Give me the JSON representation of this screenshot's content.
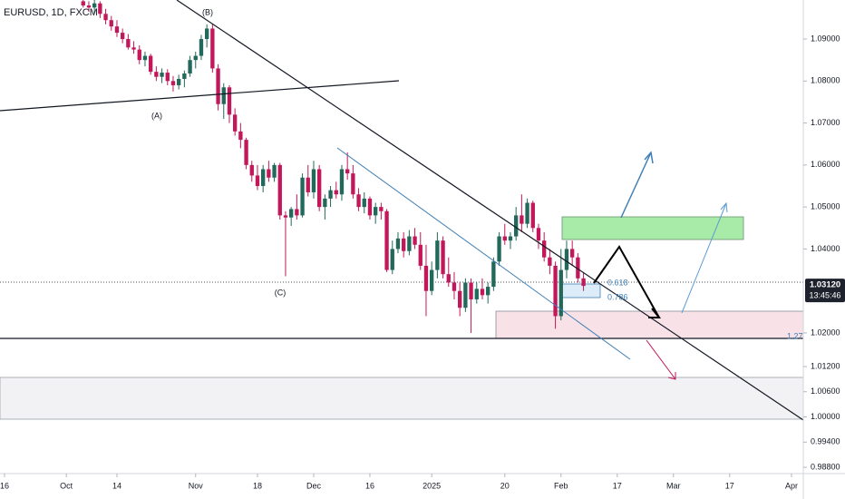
{
  "chart_data": {
    "type": "candlestick",
    "title": "EURUSD, 1D, FXCM",
    "x": [
      14,
      15,
      16,
      17,
      18,
      19,
      20,
      21,
      22,
      23,
      24,
      25,
      26,
      27,
      28,
      29,
      30,
      31,
      32,
      33,
      34,
      35,
      36,
      37,
      38,
      39,
      40,
      41,
      42,
      43,
      44,
      45,
      46,
      47,
      48,
      49,
      50,
      51,
      52,
      53,
      54,
      55,
      56,
      57,
      58,
      59,
      60,
      61,
      62,
      63,
      64,
      65,
      66,
      67,
      68,
      69,
      70,
      71,
      72,
      73,
      74,
      75,
      76,
      77,
      78,
      79,
      80,
      81,
      82,
      83,
      84,
      85,
      86,
      87,
      88,
      89,
      90,
      91,
      92,
      93,
      94,
      95,
      96,
      97,
      98,
      99,
      100,
      101,
      102,
      103
    ],
    "open": [
      1.099,
      1.098,
      1.0975,
      1.0985,
      1.096,
      1.0945,
      1.093,
      1.0915,
      1.09,
      1.088,
      1.0875,
      1.085,
      1.086,
      1.0822,
      1.081,
      1.082,
      1.08,
      1.079,
      1.0805,
      1.0818,
      1.085,
      1.086,
      1.09,
      1.0925,
      1.083,
      1.0745,
      1.0785,
      1.072,
      1.068,
      1.066,
      1.06,
      1.0575,
      1.055,
      1.059,
      1.057,
      1.06,
      1.048,
      1.0475,
      1.0495,
      1.048,
      1.057,
      1.0535,
      1.059,
      1.05,
      1.052,
      1.054,
      1.053,
      1.059,
      1.058,
      1.053,
      1.05,
      1.052,
      1.048,
      1.05,
      1.049,
      1.035,
      1.04,
      1.0425,
      1.0395,
      1.043,
      1.041,
      1.036,
      1.03,
      1.035,
      1.042,
      1.034,
      1.032,
      1.03,
      1.026,
      1.032,
      1.028,
      1.0305,
      1.029,
      1.031,
      1.037,
      1.043,
      1.042,
      1.043,
      1.048,
      1.046,
      1.051,
      1.045,
      1.042,
      1.038,
      1.036,
      1.024,
      1.035,
      1.04,
      1.038,
      1.033
    ],
    "high": [
      1.1,
      1.099,
      1.0995,
      1.099,
      1.0972,
      1.0955,
      1.0945,
      1.0925,
      1.0912,
      1.0895,
      1.0885,
      1.087,
      1.0865,
      1.0835,
      1.083,
      1.0828,
      1.0812,
      1.0815,
      1.0825,
      1.086,
      1.087,
      1.091,
      1.0935,
      1.0935,
      1.084,
      1.0795,
      1.079,
      1.0735,
      1.07,
      1.0665,
      1.061,
      1.06,
      1.06,
      1.061,
      1.0605,
      1.0605,
      1.049,
      1.05,
      1.053,
      1.058,
      1.06,
      1.061,
      1.06,
      1.053,
      1.055,
      1.056,
      1.06,
      1.063,
      1.06,
      1.0545,
      1.0535,
      1.0525,
      1.051,
      1.051,
      1.0495,
      1.042,
      1.044,
      1.044,
      1.0445,
      1.045,
      1.044,
      1.041,
      1.037,
      1.044,
      1.043,
      1.038,
      1.0345,
      1.032,
      1.033,
      1.033,
      1.032,
      1.033,
      1.032,
      1.038,
      1.044,
      1.046,
      1.044,
      1.05,
      1.053,
      1.052,
      1.0515,
      1.046,
      1.044,
      1.04,
      1.037,
      1.04,
      1.042,
      1.042,
      1.039,
      1.0345
    ],
    "low": [
      1.0975,
      1.0965,
      1.096,
      1.095,
      1.0935,
      1.092,
      1.0905,
      1.089,
      1.0875,
      1.0865,
      1.084,
      1.0835,
      1.0815,
      1.08,
      1.0795,
      1.079,
      1.0775,
      1.078,
      1.0785,
      1.081,
      1.083,
      1.085,
      1.088,
      1.082,
      1.073,
      1.071,
      1.07,
      1.067,
      1.064,
      1.059,
      1.056,
      1.054,
      1.0535,
      1.056,
      1.056,
      1.047,
      1.0335,
      1.0455,
      1.047,
      1.0475,
      1.0525,
      1.052,
      1.049,
      1.047,
      1.05,
      1.052,
      1.0515,
      1.0565,
      1.052,
      1.049,
      1.0485,
      1.047,
      1.046,
      1.047,
      1.0345,
      1.034,
      1.039,
      1.038,
      1.0385,
      1.04,
      1.035,
      1.024,
      1.029,
      1.033,
      1.033,
      1.031,
      1.028,
      1.024,
      1.025,
      1.02,
      1.027,
      1.028,
      1.027,
      1.03,
      1.036,
      1.041,
      1.04,
      1.042,
      1.044,
      1.045,
      1.044,
      1.04,
      1.037,
      1.034,
      1.021,
      1.023,
      1.033,
      1.036,
      1.032,
      1.03
    ],
    "close": [
      1.098,
      1.0975,
      1.0985,
      1.096,
      1.0945,
      1.093,
      1.0915,
      1.09,
      1.088,
      1.0875,
      1.085,
      1.086,
      1.0822,
      1.081,
      1.082,
      1.08,
      1.079,
      1.0805,
      1.0818,
      1.085,
      1.086,
      1.09,
      1.0925,
      1.083,
      1.0745,
      1.0785,
      1.072,
      1.068,
      1.066,
      1.06,
      1.0575,
      1.055,
      1.059,
      1.057,
      1.06,
      1.048,
      1.0475,
      1.0495,
      1.048,
      1.057,
      1.0535,
      1.059,
      1.05,
      1.052,
      1.054,
      1.053,
      1.059,
      1.058,
      1.053,
      1.05,
      1.052,
      1.048,
      1.05,
      1.049,
      1.035,
      1.04,
      1.0425,
      1.0395,
      1.043,
      1.041,
      1.036,
      1.03,
      1.035,
      1.042,
      1.034,
      1.032,
      1.03,
      1.026,
      1.032,
      1.028,
      1.0305,
      1.029,
      1.031,
      1.037,
      1.043,
      1.042,
      1.043,
      1.048,
      1.046,
      1.051,
      1.045,
      1.042,
      1.038,
      1.036,
      1.024,
      1.035,
      1.04,
      1.038,
      1.033,
      1.0312
    ],
    "up_color": "#22695b",
    "down_color": "#c2185b",
    "xlim": [
      -0.8,
      142.1
    ],
    "xticks": [
      {
        "value": 0,
        "label": "16"
      },
      {
        "value": 11,
        "label": "Oct"
      },
      {
        "value": 20,
        "label": "14"
      },
      {
        "value": 34,
        "label": "Nov"
      },
      {
        "value": 45,
        "label": "18"
      },
      {
        "value": 55,
        "label": "Dec"
      },
      {
        "value": 65,
        "label": "16"
      },
      {
        "value": 76,
        "label": "2025"
      },
      {
        "value": 89,
        "label": "20"
      },
      {
        "value": 99,
        "label": "Feb"
      },
      {
        "value": 109,
        "label": "17"
      },
      {
        "value": 119,
        "label": "Mar"
      },
      {
        "value": 129,
        "label": "17"
      },
      {
        "value": 140,
        "label": "Apr"
      }
    ],
    "ylim": [
      0.9865,
      1.0993
    ],
    "yticks": [
      {
        "value": 1.09,
        "label": "1.09000"
      },
      {
        "value": 1.08,
        "label": "1.08000"
      },
      {
        "value": 1.07,
        "label": "1.07000"
      },
      {
        "value": 1.06,
        "label": "1.06000"
      },
      {
        "value": 1.05,
        "label": "1.05000"
      },
      {
        "value": 1.04,
        "label": "1.04000"
      },
      {
        "value": 1.02,
        "label": "1.02000"
      },
      {
        "value": 1.012,
        "label": "1.01200"
      },
      {
        "value": 1.006,
        "label": "1.00600"
      },
      {
        "value": 1.0,
        "label": "1.00000"
      },
      {
        "value": 0.994,
        "label": "0.99400"
      },
      {
        "value": 0.988,
        "label": "0.98800"
      }
    ],
    "grid": false,
    "last_price": {
      "value": 1.0312,
      "label": "1.03120"
    },
    "countdown": "13:45:46",
    "wave_labels": [
      "(A)",
      "(B)",
      "(C)"
    ],
    "fib_labels": [
      0.618,
      0.786,
      1.27
    ]
  }
}
